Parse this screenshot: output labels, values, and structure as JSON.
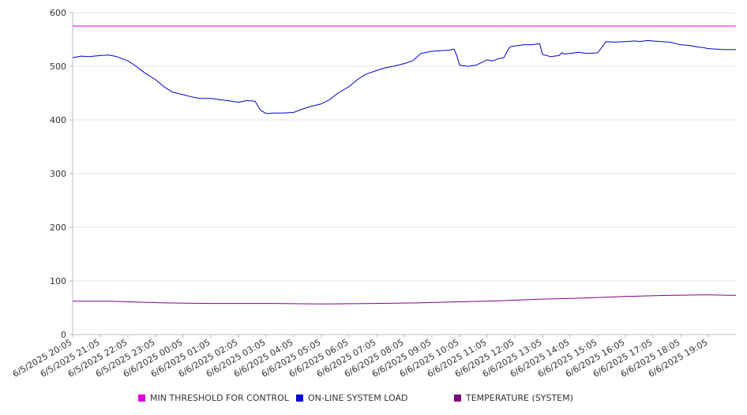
{
  "chart_data": {
    "type": "line",
    "title": "",
    "xlabel": "",
    "ylabel": "",
    "ylim": [
      0,
      600
    ],
    "y_ticks": [
      "0",
      "100",
      "200",
      "300",
      "400",
      "500",
      "600"
    ],
    "x_tick_labels": [
      "6/5/2025 20:05",
      "6/5/2025 21:05",
      "6/5/2025 22:05",
      "6/5/2025 23:05",
      "6/6/2025 00:05",
      "6/6/2025 01:05",
      "6/6/2025 02:05",
      "6/6/2025 03:05",
      "6/6/2025 04:05",
      "6/6/2025 05:05",
      "6/6/2025 06:05",
      "6/6/2025 07:05",
      "6/6/2025 08:05",
      "6/6/2025 09:05",
      "6/6/2025 10:05",
      "6/6/2025 11:05",
      "6/6/2025 12:05",
      "6/6/2025 13:05",
      "6/6/2025 14:05",
      "6/6/2025 15:05",
      "6/6/2025 16:05",
      "6/6/2025 17:05",
      "6/6/2025 18:05",
      "6/6/2025 19:05"
    ],
    "x_hours_span": 24,
    "grid": "horizontal",
    "legend_position": "bottom",
    "series": [
      {
        "name": "MIN THRESHOLD FOR CONTROL",
        "color": "#e100e1",
        "x_hours": [
          0,
          24
        ],
        "values": [
          575,
          575
        ]
      },
      {
        "name": "ON-LINE SYSTEM LOAD",
        "color": "#0000cc",
        "x_hours": [
          0,
          0.3,
          0.6,
          1.0,
          1.3,
          1.6,
          2.0,
          2.3,
          2.6,
          3.0,
          3.3,
          3.6,
          4.0,
          4.3,
          4.6,
          5.0,
          5.3,
          5.6,
          6.0,
          6.3,
          6.6,
          6.8,
          7.0,
          7.1,
          7.3,
          7.6,
          8.0,
          8.3,
          8.6,
          9.0,
          9.3,
          9.6,
          10.0,
          10.3,
          10.6,
          11.0,
          11.3,
          11.6,
          12.0,
          12.3,
          12.6,
          13.0,
          13.3,
          13.6,
          13.8,
          13.9,
          14.0,
          14.3,
          14.6,
          15.0,
          15.2,
          15.3,
          15.4,
          15.6,
          15.8,
          15.9,
          16.0,
          16.3,
          16.6,
          16.9,
          17.0,
          17.3,
          17.6,
          17.7,
          17.8,
          18.0,
          18.3,
          18.6,
          19.0,
          19.3,
          19.6,
          20.0,
          20.3,
          20.4,
          20.5,
          20.8,
          21.0,
          21.3,
          21.6,
          22.0,
          22.3,
          22.6,
          22.8,
          23.0,
          23.3,
          23.6,
          24.0
        ],
        "values": [
          516,
          519,
          518,
          520,
          521,
          518,
          510,
          500,
          488,
          475,
          462,
          452,
          447,
          443,
          440,
          440,
          438,
          436,
          433,
          436,
          435,
          418,
          412,
          412,
          413,
          413,
          414,
          420,
          425,
          430,
          438,
          450,
          462,
          475,
          485,
          492,
          497,
          500,
          505,
          510,
          524,
          528,
          529,
          530,
          532,
          520,
          502,
          500,
          502,
          512,
          510,
          512,
          514,
          516,
          535,
          537,
          538,
          540,
          540,
          542,
          522,
          518,
          520,
          525,
          523,
          524,
          526,
          524,
          525,
          546,
          545,
          546,
          547,
          547,
          546,
          548,
          547,
          546,
          545,
          540,
          539,
          536,
          535,
          533,
          532,
          531,
          531
        ]
      },
      {
        "name": "TEMPERATURE (SYSTEM)",
        "color": "#800080",
        "x_hours": [
          0,
          1.3,
          3.3,
          5.0,
          7.3,
          9.0,
          11.0,
          12.5,
          14.0,
          15.5,
          17.0,
          18.5,
          20.0,
          21.5,
          23.0,
          24.0
        ],
        "values": [
          62,
          62,
          59,
          58,
          58,
          57,
          58,
          59,
          61,
          63,
          66,
          68,
          71,
          73,
          74,
          73
        ]
      }
    ]
  }
}
